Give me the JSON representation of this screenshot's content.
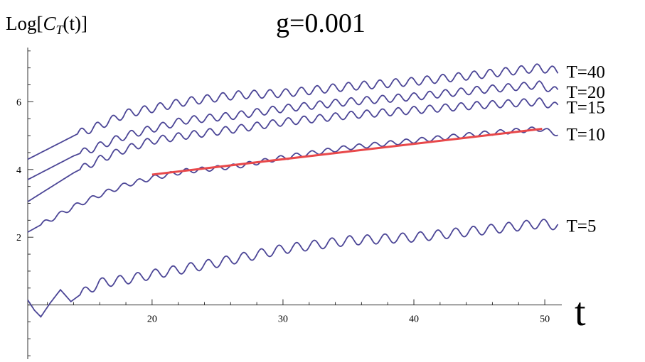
{
  "chart_data": {
    "type": "line",
    "title": "g=0.001",
    "ylabel_prefix": "Log[",
    "ylabel_C": "C",
    "ylabel_sub": "T",
    "ylabel_suffix": "(t)]",
    "xlabel": "t",
    "xlim": [
      10.5,
      51.3
    ],
    "ylim": [
      -1.6,
      7.6
    ],
    "xticks": [
      {
        "value": 20,
        "label": "20"
      },
      {
        "value": 30,
        "label": "30"
      },
      {
        "value": 40,
        "label": "40"
      },
      {
        "value": 50,
        "label": "50"
      }
    ],
    "yticks": [
      {
        "value": 2,
        "label": "2"
      },
      {
        "value": 4,
        "label": "4"
      },
      {
        "value": 6,
        "label": "6"
      }
    ],
    "grid": false,
    "series_color": "#4b4596",
    "fit_color": "#e8484a",
    "series": [
      {
        "name": "T=40",
        "points": [
          [
            10.5,
            4.3
          ],
          [
            14.3,
            5.05
          ],
          [
            16,
            5.3
          ],
          [
            18,
            5.65
          ],
          [
            20,
            5.8
          ],
          [
            22.5,
            6.0
          ],
          [
            26.5,
            6.2
          ],
          [
            30,
            6.25
          ],
          [
            35,
            6.45
          ],
          [
            40,
            6.6
          ],
          [
            45,
            6.8
          ],
          [
            49.6,
            7.0
          ],
          [
            51,
            6.9
          ]
        ],
        "ripple_start": 14.3,
        "ripple_amp": 0.12,
        "ripple_period": 1.2
      },
      {
        "name": "T=20",
        "points": [
          [
            10.5,
            3.7
          ],
          [
            14,
            4.4
          ],
          [
            16,
            4.7
          ],
          [
            18,
            5.0
          ],
          [
            20,
            5.2
          ],
          [
            22.5,
            5.45
          ],
          [
            26.5,
            5.6
          ],
          [
            30,
            5.8
          ],
          [
            35,
            6.0
          ],
          [
            40,
            6.15
          ],
          [
            45,
            6.35
          ],
          [
            49.6,
            6.5
          ],
          [
            51,
            6.3
          ]
        ],
        "ripple_start": 14.5,
        "ripple_amp": 0.11,
        "ripple_period": 1.2
      },
      {
        "name": "T=15",
        "points": [
          [
            10.5,
            3.05
          ],
          [
            14,
            3.9
          ],
          [
            16,
            4.3
          ],
          [
            18,
            4.6
          ],
          [
            20,
            4.85
          ],
          [
            22.5,
            5.0
          ],
          [
            26.5,
            5.2
          ],
          [
            30,
            5.4
          ],
          [
            35,
            5.6
          ],
          [
            40,
            5.75
          ],
          [
            45,
            5.9
          ],
          [
            49.6,
            6.0
          ],
          [
            51,
            5.85
          ]
        ],
        "ripple_start": 14.5,
        "ripple_amp": 0.11,
        "ripple_period": 1.2
      },
      {
        "name": "T=10",
        "points": [
          [
            10.5,
            2.15
          ],
          [
            14,
            2.9
          ],
          [
            16,
            3.25
          ],
          [
            18,
            3.55
          ],
          [
            20,
            3.75
          ],
          [
            22.5,
            3.95
          ],
          [
            26.5,
            4.1
          ],
          [
            30,
            4.35
          ],
          [
            35,
            4.65
          ],
          [
            40,
            4.85
          ],
          [
            45,
            5.05
          ],
          [
            49.6,
            5.2
          ],
          [
            51,
            5.05
          ]
        ],
        "ripple_start": 11.5,
        "ripple_amp": 0.07,
        "ripple_period": 1.2
      },
      {
        "name": "T=5",
        "points": [
          [
            10.5,
            0.15
          ],
          [
            11.0,
            -0.15
          ],
          [
            11.5,
            -0.35
          ],
          [
            12.2,
            0.05
          ],
          [
            13.0,
            0.45
          ],
          [
            13.8,
            0.1
          ],
          [
            14.5,
            0.3
          ],
          [
            16,
            0.65
          ],
          [
            18,
            0.75
          ],
          [
            20,
            0.9
          ],
          [
            25,
            1.25
          ],
          [
            30,
            1.65
          ],
          [
            35,
            1.9
          ],
          [
            40,
            2.0
          ],
          [
            45,
            2.2
          ],
          [
            49.6,
            2.4
          ],
          [
            51,
            2.35
          ]
        ],
        "ripple_start": 14.5,
        "ripple_amp": 0.14,
        "ripple_period": 1.35
      }
    ],
    "fit_line": {
      "x": [
        20,
        49.8
      ],
      "y": [
        3.85,
        5.2
      ]
    }
  }
}
